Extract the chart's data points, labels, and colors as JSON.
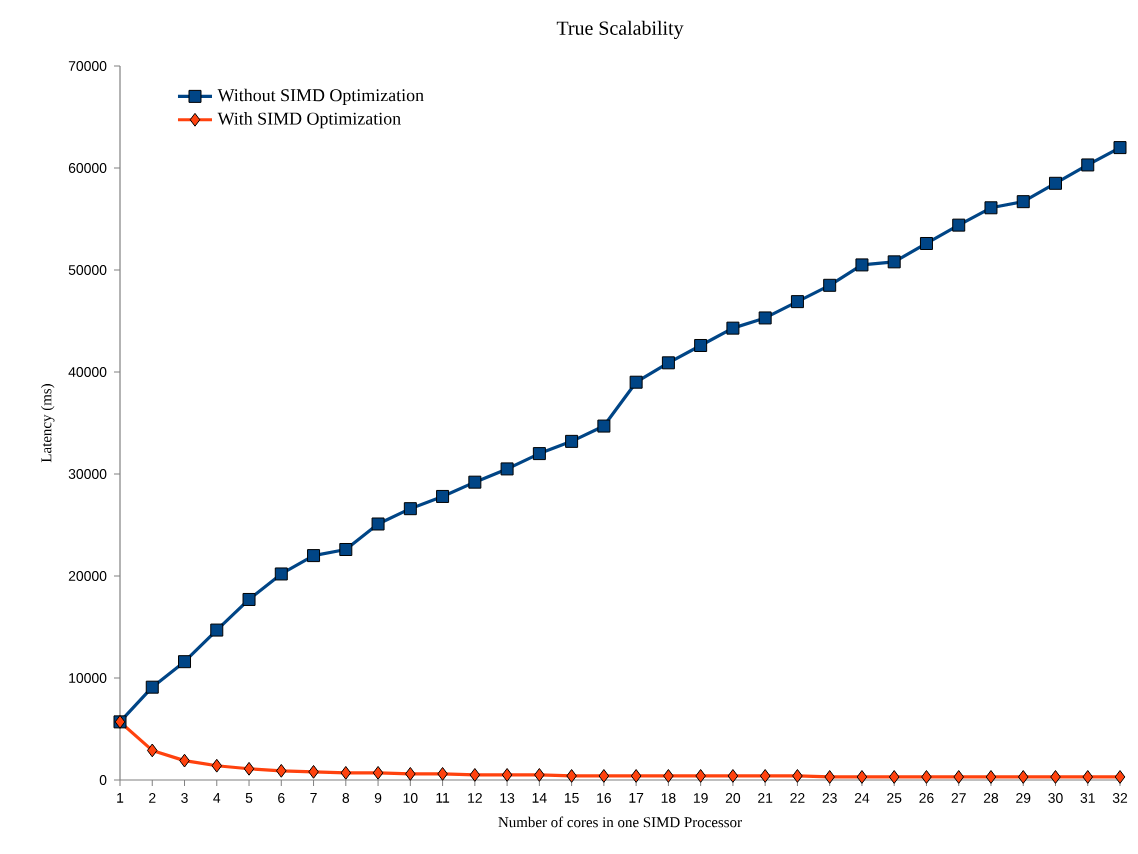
{
  "chart_data": {
    "type": "line",
    "title": "True Scalability",
    "xlabel": "Number of cores in one SIMD Processor",
    "ylabel": "Latency (ms)",
    "categories": [
      "1",
      "2",
      "3",
      "4",
      "5",
      "6",
      "7",
      "8",
      "9",
      "10",
      "11",
      "12",
      "13",
      "14",
      "15",
      "16",
      "17",
      "18",
      "19",
      "20",
      "21",
      "22",
      "23",
      "24",
      "25",
      "26",
      "27",
      "28",
      "29",
      "30",
      "31",
      "32"
    ],
    "ylim": [
      0,
      70000
    ],
    "yticks": [
      0,
      10000,
      20000,
      30000,
      40000,
      50000,
      60000,
      70000
    ],
    "legend": "top left",
    "grid": false,
    "series": [
      {
        "name": "Without SIMD Optimization",
        "color": "#004586",
        "marker": "square",
        "values": [
          5700,
          9100,
          11600,
          14700,
          17700,
          20200,
          22000,
          22600,
          25100,
          26600,
          27800,
          29200,
          30500,
          32000,
          33200,
          34700,
          39000,
          40900,
          42600,
          44300,
          45300,
          46900,
          48500,
          50500,
          50800,
          52600,
          54400,
          56100,
          56700,
          58500,
          60300,
          62000
        ]
      },
      {
        "name": "With SIMD Optimization",
        "color": "#ff420e",
        "marker": "diamond",
        "values": [
          5700,
          2900,
          1900,
          1400,
          1100,
          900,
          800,
          700,
          700,
          600,
          600,
          500,
          500,
          500,
          400,
          400,
          400,
          400,
          400,
          400,
          400,
          400,
          300,
          300,
          300,
          300,
          300,
          300,
          300,
          300,
          300,
          300
        ]
      }
    ]
  }
}
